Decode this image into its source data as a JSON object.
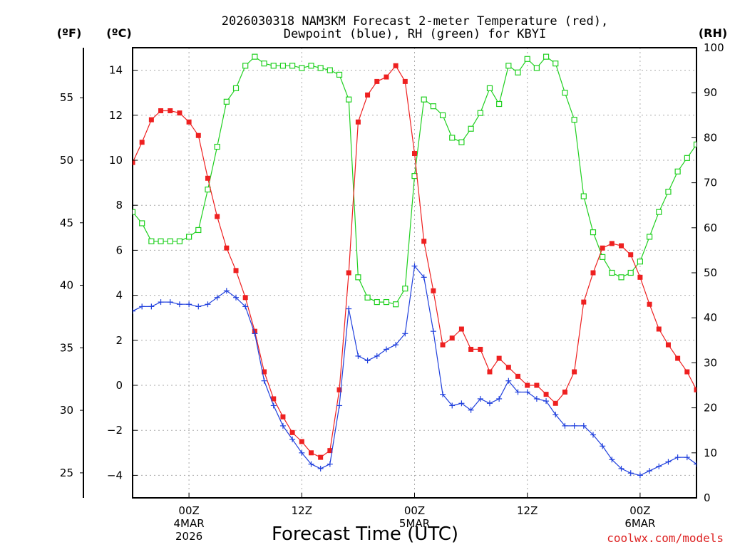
{
  "chart_data": {
    "type": "line",
    "title": [
      "2026030318 NAM3KM Forecast 2-meter Temperature (red),",
      "Dewpoint (blue), RH (green) for KBYI"
    ],
    "xlabel": "Forecast Time (UTC)",
    "credit": "coolwx.com/models",
    "units": {
      "left_outer": "(ºF)",
      "left_inner": "(ºC)",
      "right": "(RH)"
    },
    "x_range_hours": [
      0,
      60
    ],
    "x_ticks": [
      {
        "hour": 6,
        "label": "00Z",
        "sub1": "4MAR",
        "sub2": "2026"
      },
      {
        "hour": 18,
        "label": "12Z",
        "sub1": "",
        "sub2": ""
      },
      {
        "hour": 30,
        "label": "00Z",
        "sub1": "5MAR",
        "sub2": ""
      },
      {
        "hour": 42,
        "label": "12Z",
        "sub1": "",
        "sub2": ""
      },
      {
        "hour": 54,
        "label": "00Z",
        "sub1": "6MAR",
        "sub2": ""
      }
    ],
    "celsius_axis": {
      "range": [
        -5,
        15
      ],
      "ticks": [
        -4,
        -2,
        0,
        2,
        4,
        6,
        8,
        10,
        12,
        14
      ],
      "labels": [
        "−4",
        "−2",
        "0",
        "2",
        "4",
        "6",
        "8",
        "10",
        "12",
        "14"
      ]
    },
    "fahrenheit_axis": {
      "ticks": [
        25,
        30,
        35,
        40,
        45,
        50,
        55
      ],
      "labels": [
        "25",
        "30",
        "35",
        "40",
        "45",
        "50",
        "55"
      ]
    },
    "rh_axis": {
      "range": [
        0,
        100
      ],
      "ticks": [
        0,
        10,
        20,
        30,
        40,
        50,
        60,
        70,
        80,
        90,
        100
      ],
      "labels": [
        "0",
        "10",
        "20",
        "30",
        "40",
        "50",
        "60",
        "70",
        "80",
        "90",
        "100"
      ]
    },
    "series": [
      {
        "name": "2-meter Temperature",
        "color": "#ee2020",
        "axis": "celsius",
        "marker": "filled-square",
        "values": [
          9.9,
          10.8,
          11.8,
          12.2,
          12.2,
          12.1,
          11.7,
          11.1,
          9.2,
          7.5,
          6.1,
          5.1,
          3.9,
          2.4,
          0.6,
          -0.6,
          -1.4,
          -2.1,
          -2.5,
          -3.0,
          -3.2,
          -2.9,
          -0.2,
          5.0,
          11.7,
          12.9,
          13.5,
          13.7,
          14.2,
          13.5,
          10.3,
          6.4,
          4.2,
          1.8,
          2.1,
          2.5,
          1.6,
          1.6,
          0.6,
          1.2,
          0.8,
          0.4,
          0.0,
          0.0,
          -0.4,
          -0.8,
          -0.3,
          0.6,
          3.7,
          5.0,
          6.1,
          6.3,
          6.2,
          5.8,
          4.8,
          3.6,
          2.5,
          1.8,
          1.2,
          0.6,
          -0.2
        ]
      },
      {
        "name": "Dewpoint",
        "color": "#2040dd",
        "axis": "celsius",
        "marker": "plus",
        "values": [
          3.3,
          3.5,
          3.5,
          3.7,
          3.7,
          3.6,
          3.6,
          3.5,
          3.6,
          3.9,
          4.2,
          3.9,
          3.5,
          2.3,
          0.2,
          -0.9,
          -1.8,
          -2.4,
          -3.0,
          -3.5,
          -3.7,
          -3.5,
          -0.9,
          3.4,
          1.3,
          1.1,
          1.3,
          1.6,
          1.8,
          2.3,
          5.3,
          4.8,
          2.4,
          -0.4,
          -0.9,
          -0.8,
          -1.1,
          -0.6,
          -0.8,
          -0.6,
          0.2,
          -0.3,
          -0.3,
          -0.6,
          -0.7,
          -1.3,
          -1.8,
          -1.8,
          -1.8,
          -2.2,
          -2.7,
          -3.3,
          -3.7,
          -3.9,
          -4.0,
          -3.8,
          -3.6,
          -3.4,
          -3.2,
          -3.2,
          -3.5
        ]
      },
      {
        "name": "RH",
        "color": "#20d020",
        "axis": "rh",
        "marker": "open-square",
        "values": [
          63.5,
          61,
          57,
          57,
          57,
          57,
          58,
          59.5,
          68.5,
          78,
          88,
          91,
          96,
          98,
          96.5,
          96,
          96,
          96,
          95.5,
          96,
          95.5,
          95,
          94,
          88.5,
          49,
          44.5,
          43.5,
          43.5,
          43,
          46.5,
          71.5,
          88.5,
          87,
          85,
          80,
          79,
          82,
          85.5,
          91,
          87.5,
          96,
          94.5,
          97.5,
          95.5,
          98,
          96.5,
          90,
          84,
          67,
          59,
          53.5,
          50,
          49,
          50,
          52.5,
          58,
          63.5,
          68,
          72.5,
          75.5,
          78.5
        ]
      }
    ]
  }
}
